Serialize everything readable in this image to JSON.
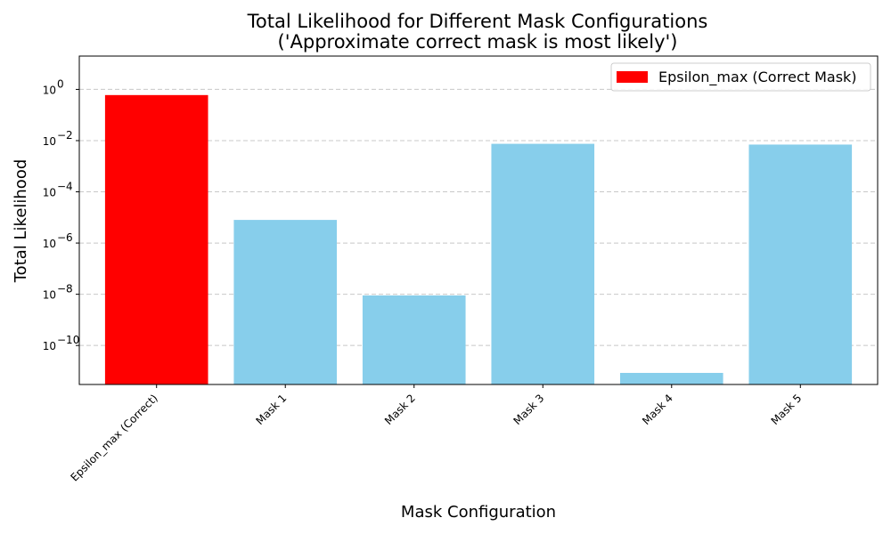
{
  "chart_data": {
    "type": "bar",
    "title": "Total Likelihood for Different Mask Configurations",
    "subtitle": "('Approximate correct mask is most likely')",
    "xlabel": "Mask Configuration",
    "ylabel": "Total Likelihood",
    "yscale": "log",
    "ylim": [
      3e-12,
      20
    ],
    "grid": "y-dashed",
    "legend_position": "top-right",
    "categories": [
      "Epsilon_max (Correct)",
      "Mask 1",
      "Mask 2",
      "Mask 3",
      "Mask 4",
      "Mask 5"
    ],
    "values": [
      0.6,
      8e-06,
      9e-09,
      0.0075,
      8.5e-12,
      0.007
    ],
    "bar_colors": [
      "#ff0000",
      "#87ceeb",
      "#87ceeb",
      "#87ceeb",
      "#87ceeb",
      "#87ceeb"
    ],
    "ytick_exponents": [
      0,
      -2,
      -4,
      -6,
      -8,
      -10
    ],
    "legend": [
      {
        "label": "Epsilon_max (Correct Mask)",
        "color": "#ff0000"
      }
    ]
  }
}
